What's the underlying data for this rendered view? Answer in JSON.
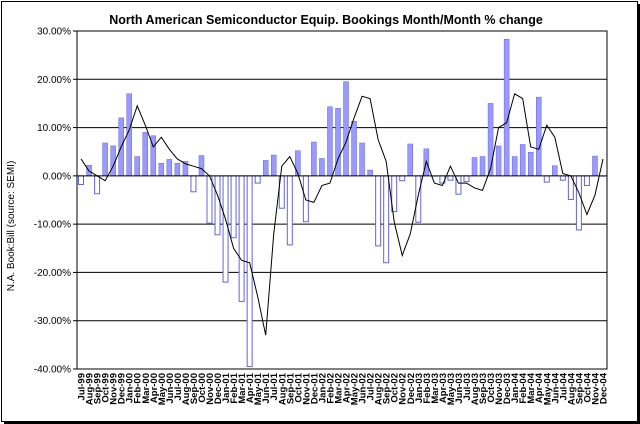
{
  "chart_data": {
    "type": "bar",
    "title": "North American Semiconductor Equip. Bookings Month/Month % change",
    "ylabel": "N.A. Book:Bill  (source: SEMI)",
    "ylim": [
      -40,
      30
    ],
    "yticks": [
      30,
      20,
      10,
      0,
      -10,
      -20,
      -30,
      -40
    ],
    "ytick_labels": [
      "30.00%",
      "20.00%",
      "10.00%",
      "0.00%",
      "-10.00%",
      "-20.00%",
      "-30.00%",
      "-40.00%"
    ],
    "categories": [
      "Jul-99",
      "Aug-99",
      "Sep-99",
      "Oct-99",
      "Nov-99",
      "Dec-99",
      "Jan-00",
      "Feb-00",
      "Mar-00",
      "Apr-00",
      "May-00",
      "Jun-00",
      "Jul-00",
      "Aug-00",
      "Sep-00",
      "Oct-00",
      "Nov-00",
      "Dec-00",
      "Jan-01",
      "Feb-01",
      "Mar-01",
      "Apr-01",
      "May-01",
      "Jun-01",
      "Jul-01",
      "Aug-01",
      "Sep-01",
      "Oct-01",
      "Nov-01",
      "Dec-01",
      "Jan-02",
      "Feb-02",
      "Mar-02",
      "Apr-02",
      "May-02",
      "Jun-02",
      "Jul-02",
      "Aug-02",
      "Sep-02",
      "Oct-02",
      "Nov-02",
      "Dec-02",
      "Jan-03",
      "Feb-03",
      "Mar-03",
      "Apr-03",
      "May-03",
      "Jun-03",
      "Jul-03",
      "Aug-03",
      "Sep-03",
      "Oct-03",
      "Nov-03",
      "Dec-03",
      "Jan-04",
      "Feb-04",
      "Mar-04",
      "Apr-04",
      "May-04",
      "Jun-04",
      "Jul-04",
      "Aug-04",
      "Sep-04",
      "Oct-04",
      "Nov-04",
      "Dec-04"
    ],
    "tick_labels": [
      "Jul-99",
      "Aug-99",
      "Sep-99",
      "Oct-99",
      "Nov-99",
      "Dec-99",
      "Jan-00",
      "Feb-00",
      "Mar-00",
      "Apr-00",
      "May-00",
      "Jun-00",
      "Jul-00",
      "Aug-00",
      "Sep-00",
      "Oct-00",
      "Nov-00",
      "Dec-00",
      "Jan-01",
      "Feb-01",
      "Mar-01",
      "Apr-01",
      "May-01",
      "Jun-01",
      "Jul-01",
      "Aug-01",
      "Sep-01",
      "Oct-01",
      "Nov-01",
      "Dec-01",
      "Jan-02",
      "Feb-02",
      "Mar-02",
      "Apr-02",
      "May-02",
      "Jun-02",
      "Jul-02",
      "Aug-02",
      "Sep-02",
      "Oct-02",
      "Nov-02",
      "Dec-02",
      "Jan-03",
      "Feb-03",
      "Mar-03",
      "Apr-03",
      "May-03",
      "Jun-03",
      "Jul-03",
      "Aug-03",
      "Sep-03",
      "Oct-03",
      "Nov-03",
      "Dec-03",
      "Jan-04",
      "Feb-04",
      "Mar-04",
      "Apr-04",
      "May-04",
      "Jun-04",
      "Jul-04",
      "Aug-04",
      "Sep-04",
      "Oct-04",
      "Nov-04",
      "Dec-04"
    ],
    "series": [
      {
        "values": [
          -1.8,
          2.2,
          -3.7,
          6.8,
          6.2,
          12.0,
          17.0,
          4.0,
          9.0,
          8.3,
          2.6,
          3.4,
          2.6,
          3.0,
          -3.3,
          4.2,
          -9.8,
          -12.2,
          -22.0,
          -12.8,
          -26.0,
          -39.5,
          -1.5,
          3.2,
          4.3,
          -6.7,
          -14.3,
          5.2,
          -9.5,
          7.0,
          3.6,
          14.3,
          14.0,
          19.5,
          11.3,
          6.8,
          1.2,
          -14.5,
          -18.0,
          -7.4,
          -1.0,
          6.6,
          -9.6,
          5.6,
          0.0,
          -1.5,
          -0.9,
          -3.8,
          -1.2,
          3.8,
          4.0,
          15.0,
          6.2,
          28.3,
          4.0,
          6.5,
          4.9,
          16.3,
          -1.3,
          2.1,
          -0.9,
          -4.9,
          -11.2,
          -2.0,
          4.1,
          0.0
        ]
      },
      {
        "values": [
          3.5,
          1.0,
          0.0,
          -1.0,
          2.0,
          6.0,
          9.5,
          14.5,
          10.5,
          6.0,
          8.0,
          5.5,
          3.5,
          2.5,
          2.0,
          1.5,
          0.0,
          -4.0,
          -9.0,
          -15.0,
          -17.5,
          -18.0,
          -25.0,
          -33.0,
          -12.0,
          2.0,
          4.0,
          0.5,
          -5.0,
          -5.5,
          -2.0,
          -1.5,
          3.5,
          7.0,
          12.0,
          16.5,
          16.0,
          7.5,
          3.0,
          -9.5,
          -16.5,
          -12.0,
          -4.0,
          3.0,
          -1.5,
          -2.0,
          2.0,
          -1.5,
          -1.5,
          -2.5,
          -3.0,
          1.5,
          10.0,
          11.0,
          17.0,
          16.0,
          6.0,
          5.5,
          10.5,
          8.0,
          0.5,
          0.0,
          -3.5,
          -8.0,
          -4.0,
          3.5
        ]
      }
    ],
    "grid": true,
    "legend": "none"
  },
  "colors": {
    "bar_fill": "#9999ff",
    "bar_edge": "#6666cc",
    "line": "#000000",
    "plot_bg": "#ffffff",
    "grid": "#000000"
  }
}
